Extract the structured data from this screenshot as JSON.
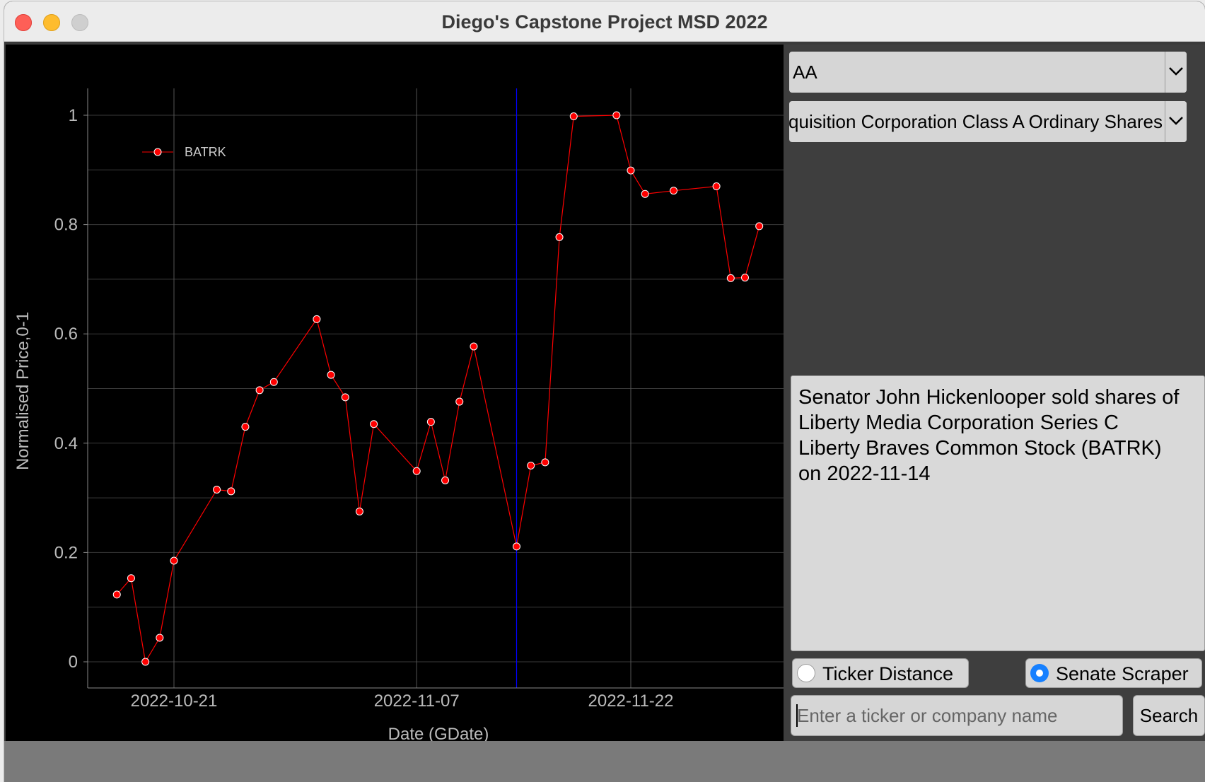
{
  "window": {
    "title": "Diego's Capstone Project MSD 2022"
  },
  "controls": {
    "ticker_select": {
      "value": "AA"
    },
    "company_select": {
      "value": "Acquisition Corporation Class A Ordinary Shares"
    },
    "info_text": "Senator John Hickenlooper sold shares of Liberty Media Corporation Series C Liberty Braves Common Stock (BATRK) on 2022-11-14",
    "radio_ticker_distance": {
      "label": "Ticker Distance",
      "selected": false
    },
    "radio_senate_scraper": {
      "label": "Senate Scraper",
      "selected": true
    },
    "search_input": {
      "placeholder": "Enter a ticker or company name",
      "value": ""
    },
    "search_button": "Search"
  },
  "colors": {
    "series": "#ff0000",
    "marker_line": "#0000ff",
    "chart_bg": "#000000",
    "grid": "#555555",
    "axis_text": "#cccccc"
  },
  "chart_data": {
    "type": "line",
    "xlabel": "Date (GDate)",
    "ylabel": "Normalised Price,0-1",
    "ylim": [
      0,
      1
    ],
    "y_ticks": [
      "0",
      "0.2",
      "0.4",
      "0.6",
      "0.8",
      "1"
    ],
    "x_ticks": [
      "2022-10-21",
      "2022-11-07",
      "2022-11-22"
    ],
    "marker_date": "2022-11-14",
    "legend": "top-left",
    "grid": true,
    "series": [
      {
        "name": "BATRK",
        "x": [
          "2022-10-17",
          "2022-10-18",
          "2022-10-19",
          "2022-10-20",
          "2022-10-21",
          "2022-10-24",
          "2022-10-25",
          "2022-10-26",
          "2022-10-27",
          "2022-10-28",
          "2022-10-31",
          "2022-11-01",
          "2022-11-02",
          "2022-11-03",
          "2022-11-04",
          "2022-11-07",
          "2022-11-08",
          "2022-11-09",
          "2022-11-10",
          "2022-11-11",
          "2022-11-14",
          "2022-11-15",
          "2022-11-16",
          "2022-11-17",
          "2022-11-18",
          "2022-11-21",
          "2022-11-22",
          "2022-11-23",
          "2022-11-25",
          "2022-11-28",
          "2022-11-29",
          "2022-11-30",
          "2022-12-01"
        ],
        "values": [
          0.123,
          0.153,
          0.0,
          0.044,
          0.185,
          0.315,
          0.312,
          0.43,
          0.497,
          0.512,
          0.627,
          0.525,
          0.484,
          0.275,
          0.435,
          0.349,
          0.439,
          0.332,
          0.476,
          0.577,
          0.211,
          0.359,
          0.365,
          0.777,
          0.998,
          1.0,
          0.899,
          0.856,
          0.862,
          0.87,
          0.702,
          0.703,
          0.797
        ]
      }
    ]
  }
}
